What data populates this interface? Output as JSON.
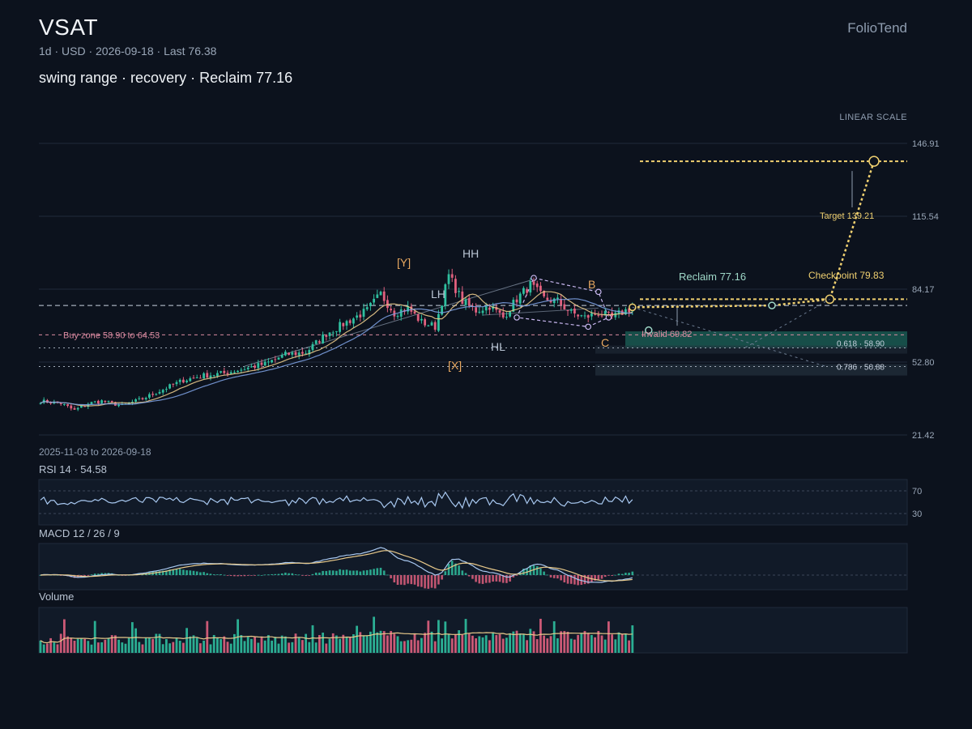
{
  "header": {
    "ticker": "VSAT",
    "subtitle": "1d · USD · 2026-09-18 · Last 76.38",
    "headline": "swing range · recovery · Reclaim 77.16",
    "brand": "FolioTend",
    "scale_label": "LINEAR SCALE",
    "date_range": "2025-11-03 to 2026-09-18"
  },
  "colors": {
    "up": "#2fbf9f",
    "down": "#e0607e",
    "ma_fast": "#e8c98a",
    "ma_slow": "#7b9fe0",
    "target": "#f0d070",
    "reclaim": "#9fd8c8",
    "pivot": "#c9b8f0",
    "rsi": "#a8c8f0"
  },
  "chart_data": [
    {
      "type": "candlestick",
      "title": "",
      "x_range": [
        "2025-11-03",
        "2026-09-18"
      ],
      "y_ticks": [
        146.91,
        115.54,
        84.17,
        52.8,
        21.42
      ],
      "ylim": [
        21.42,
        146.91
      ],
      "scale": "linear",
      "last": 76.38,
      "anchors": [
        [
          0,
          36
        ],
        [
          6,
          35
        ],
        [
          10,
          32
        ],
        [
          14,
          35
        ],
        [
          18,
          36
        ],
        [
          24,
          34
        ],
        [
          30,
          37
        ],
        [
          36,
          41
        ],
        [
          42,
          45
        ],
        [
          48,
          47
        ],
        [
          54,
          48
        ],
        [
          60,
          50
        ],
        [
          66,
          52
        ],
        [
          72,
          56
        ],
        [
          78,
          57
        ],
        [
          84,
          65
        ],
        [
          90,
          70
        ],
        [
          96,
          75
        ],
        [
          100,
          82
        ],
        [
          104,
          74
        ],
        [
          108,
          76
        ],
        [
          112,
          70
        ],
        [
          116,
          68
        ],
        [
          120,
          90
        ],
        [
          124,
          79
        ],
        [
          128,
          75
        ],
        [
          132,
          77
        ],
        [
          136,
          72
        ],
        [
          140,
          80
        ],
        [
          144,
          86
        ],
        [
          148,
          80
        ],
        [
          152,
          79
        ],
        [
          156,
          74
        ],
        [
          160,
          72
        ],
        [
          164,
          74
        ],
        [
          168,
          72
        ],
        [
          172,
          75
        ],
        [
          174,
          76.38
        ]
      ],
      "levels": [
        {
          "label": "Buy zone 58.90 to 64.53",
          "low": 58.9,
          "high": 64.53
        },
        {
          "label": "Invalid 69.82",
          "value": 69.82
        },
        {
          "label": "0.618 · 58.90",
          "value": 58.9
        },
        {
          "label": "0.786 · 50.88",
          "value": 50.88
        },
        {
          "label": "Reclaim 77.16",
          "value": 77.16
        },
        {
          "label": "Checkpoint 79.83",
          "value": 79.83
        },
        {
          "label": "Target 139.21",
          "value": 139.21
        }
      ],
      "pivot_labels": [
        "[Y]",
        "HH",
        "LH",
        "HL",
        "[X]",
        "B",
        "C"
      ],
      "projection": [
        {
          "date_index": 174,
          "value": 76.38
        },
        {
          "date_index": 215,
          "value": 77.16
        },
        {
          "date_index": 232,
          "value": 79.83
        },
        {
          "date_index": 245,
          "value": 139.21
        }
      ]
    },
    {
      "type": "line",
      "title": "RSI 14 · 54.58",
      "series": [
        {
          "name": "RSI 14",
          "last": 54.58
        }
      ],
      "y_ticks": [
        70,
        30
      ],
      "ylim": [
        10,
        90
      ]
    },
    {
      "type": "line",
      "title": "MACD 12 / 26 / 9",
      "series": [
        {
          "name": "MACD"
        },
        {
          "name": "Signal"
        },
        {
          "name": "Histogram"
        }
      ]
    },
    {
      "type": "bar",
      "title": "Volume"
    }
  ]
}
